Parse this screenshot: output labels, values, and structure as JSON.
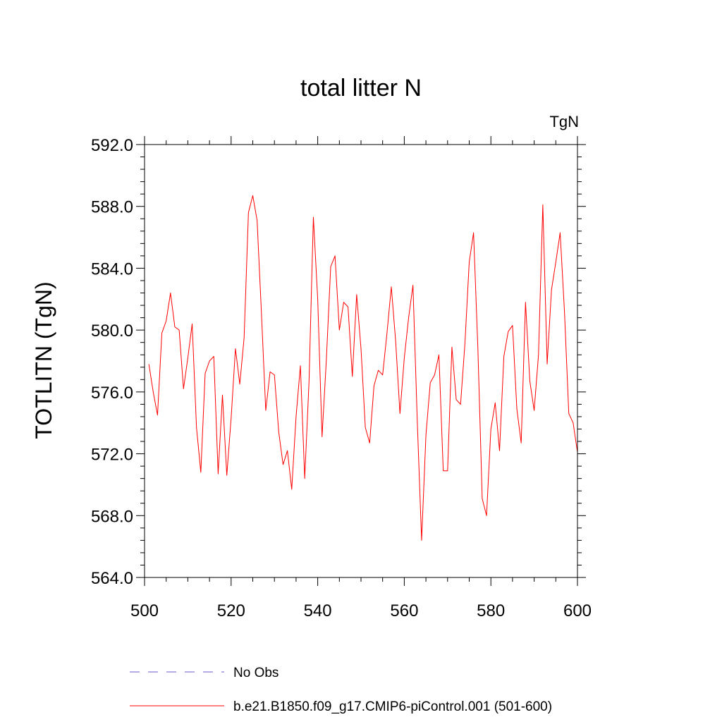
{
  "chart_data": {
    "type": "line",
    "title": "total litter N",
    "units_label": "TgN",
    "ylabel": "TOTLITN  (TgN)",
    "xlabel": "",
    "xlim": [
      500,
      600
    ],
    "ylim": [
      564,
      592
    ],
    "x_ticks": [
      "500",
      "520",
      "540",
      "560",
      "580",
      "600"
    ],
    "y_ticks": [
      "564.0",
      "568.0",
      "572.0",
      "576.0",
      "580.0",
      "584.0",
      "588.0",
      "592.0"
    ],
    "legend": [
      {
        "label": "No Obs",
        "color": "#6a5acd",
        "style": "dashed"
      },
      {
        "label": "b.e21.B1850.f09_g17.CMIP6-piControl.001 (501-600)",
        "color": "#ff0000",
        "style": "solid"
      }
    ],
    "series": [
      {
        "name": "b.e21.B1850.f09_g17.CMIP6-piControl.001 (501-600)",
        "color": "#ff0000",
        "x": [
          501,
          502,
          503,
          504,
          505,
          506,
          507,
          508,
          509,
          510,
          511,
          512,
          513,
          514,
          515,
          516,
          517,
          518,
          519,
          520,
          521,
          522,
          523,
          524,
          525,
          526,
          527,
          528,
          529,
          530,
          531,
          532,
          533,
          534,
          535,
          536,
          537,
          538,
          539,
          540,
          541,
          542,
          543,
          544,
          545,
          546,
          547,
          548,
          549,
          550,
          551,
          552,
          553,
          554,
          555,
          556,
          557,
          558,
          559,
          560,
          561,
          562,
          563,
          564,
          565,
          566,
          567,
          568,
          569,
          570,
          571,
          572,
          573,
          574,
          575,
          576,
          577,
          578,
          579,
          580,
          581,
          582,
          583,
          584,
          585,
          586,
          587,
          588,
          589,
          590,
          591,
          592,
          593,
          594,
          595,
          596,
          597,
          598,
          599,
          600
        ],
        "values": [
          577.8,
          576.0,
          574.5,
          579.8,
          580.6,
          582.4,
          580.2,
          580.0,
          576.2,
          578.2,
          580.4,
          573.7,
          570.8,
          577.2,
          578.0,
          578.3,
          570.7,
          575.8,
          570.6,
          574.3,
          578.8,
          576.5,
          579.5,
          587.6,
          588.7,
          587.1,
          581.1,
          574.8,
          577.3,
          577.1,
          573.4,
          571.3,
          572.2,
          569.7,
          574.4,
          577.7,
          570.4,
          576.7,
          587.3,
          582.0,
          573.1,
          578.1,
          584.1,
          584.8,
          580.0,
          581.8,
          581.5,
          577.0,
          582.3,
          578.8,
          573.7,
          572.7,
          576.4,
          577.4,
          577.1,
          579.8,
          582.8,
          579.3,
          574.6,
          578.2,
          580.8,
          582.9,
          574.1,
          566.4,
          573.2,
          576.6,
          577.1,
          578.4,
          570.9,
          570.9,
          578.9,
          575.5,
          575.2,
          579.1,
          584.4,
          586.3,
          578.8,
          569.1,
          568.0,
          573.6,
          575.3,
          572.2,
          578.3,
          579.9,
          580.3,
          574.9,
          572.7,
          581.8,
          576.7,
          574.8,
          578.4,
          588.1,
          577.8,
          582.6,
          584.4,
          586.3,
          581.2,
          574.6,
          574.0,
          572.1
        ]
      }
    ]
  }
}
